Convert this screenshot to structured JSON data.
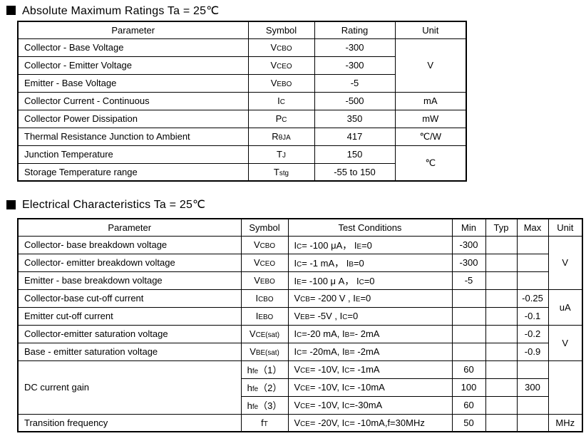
{
  "colors": {
    "background": "#ffffff",
    "text": "#000000",
    "border": "#000000"
  },
  "section1": {
    "title": "Absolute Maximum Ratings Ta = 25℃",
    "table": {
      "headers": [
        "Parameter",
        "Symbol",
        "Rating",
        "Unit"
      ],
      "rows": [
        {
          "parameter": "Collector - Base Voltage",
          "symbol": "V{CBO}",
          "rating": "-300"
        },
        {
          "parameter": "Collector - Emitter Voltage",
          "symbol": "V{CEO}",
          "rating": "-300"
        },
        {
          "parameter": "Emitter - Base Voltage",
          "symbol": "V{EBO}",
          "rating": "-5"
        },
        {
          "parameter": "Collector Current  - Continuous",
          "symbol": "I{C}",
          "rating": "-500"
        },
        {
          "parameter": "Collector Power Dissipation",
          "symbol": "P{C}",
          "rating": "350"
        },
        {
          "parameter": "Thermal Resistance Junction to Ambient",
          "symbol": "R{θJA}",
          "rating": "417"
        },
        {
          "parameter": "Junction Temperature",
          "symbol": "T{J}",
          "rating": "150"
        },
        {
          "parameter": "Storage Temperature range",
          "symbol": "T{stg}",
          "rating": "-55 to 150"
        }
      ],
      "units": [
        "V",
        "mA",
        "mW",
        "℃/W",
        "℃"
      ]
    }
  },
  "section2": {
    "title": "Electrical Characteristics Ta = 25℃",
    "table": {
      "headers": [
        "Parameter",
        "Symbol",
        "Test Conditions",
        "Min",
        "Typ",
        "Max",
        "Unit"
      ],
      "rows": [
        {
          "parameter": "Collector- base breakdown voltage",
          "symbol": "V{CBO}",
          "conditions": "I{C}= -100 μA， I{E}=0",
          "min": "-300",
          "typ": "",
          "max": ""
        },
        {
          "parameter": "Collector- emitter breakdown voltage",
          "symbol": "V{CEO}",
          "conditions": "I{C}= -1 mA， I{B}=0",
          "min": "-300",
          "typ": "",
          "max": ""
        },
        {
          "parameter": "Emitter - base breakdown voltage",
          "symbol": "V{EBO}",
          "conditions": "I{E}= -100 μ A， I{C}=0",
          "min": "-5",
          "typ": "",
          "max": ""
        },
        {
          "parameter": "Collector-base cut-off current",
          "symbol": "I{CBO}",
          "conditions": "V{CB}= -200 V , I{E}=0",
          "min": "",
          "typ": "",
          "max": "-0.25"
        },
        {
          "parameter": "Emitter cut-off current",
          "symbol": "I{EBO}",
          "conditions": "V{EB}= -5V , I{C}=0",
          "min": "",
          "typ": "",
          "max": "-0.1"
        },
        {
          "parameter": "Collector-emitter saturation voltage",
          "symbol": "V{CE(sat)}",
          "conditions": "I{C}=-20 mA, I{B}=- 2mA",
          "min": "",
          "typ": "",
          "max": "-0.2"
        },
        {
          "parameter": "Base - emitter saturation voltage",
          "symbol": "V{BE(sat)}",
          "conditions": "I{C}= -20mA, I{B}= -2mA",
          "min": "",
          "typ": "",
          "max": "-0.9"
        },
        {
          "parameter": "DC current gain",
          "symbol": "h{fe}（1）",
          "conditions": "V{CE}= -10V, I{C}= -1mA",
          "min": "60",
          "typ": "",
          "max": ""
        },
        {
          "symbol": "h{fe}（2）",
          "conditions": "V{CE}= -10V, I{C}= -10mA",
          "min": "100",
          "typ": "",
          "max": "300"
        },
        {
          "symbol": "h{fe}（3）",
          "conditions": "V{CE}= -10V, I{C}=-30mA",
          "min": "60",
          "typ": "",
          "max": ""
        },
        {
          "parameter": "Transition frequency",
          "symbol": "f{T}",
          "conditions": "V{CE}= -20V, I{C}= -10mA,f=30MHz",
          "min": "50",
          "typ": "",
          "max": ""
        }
      ],
      "units": [
        "V",
        "uA",
        "V",
        "",
        "MHz"
      ]
    }
  }
}
